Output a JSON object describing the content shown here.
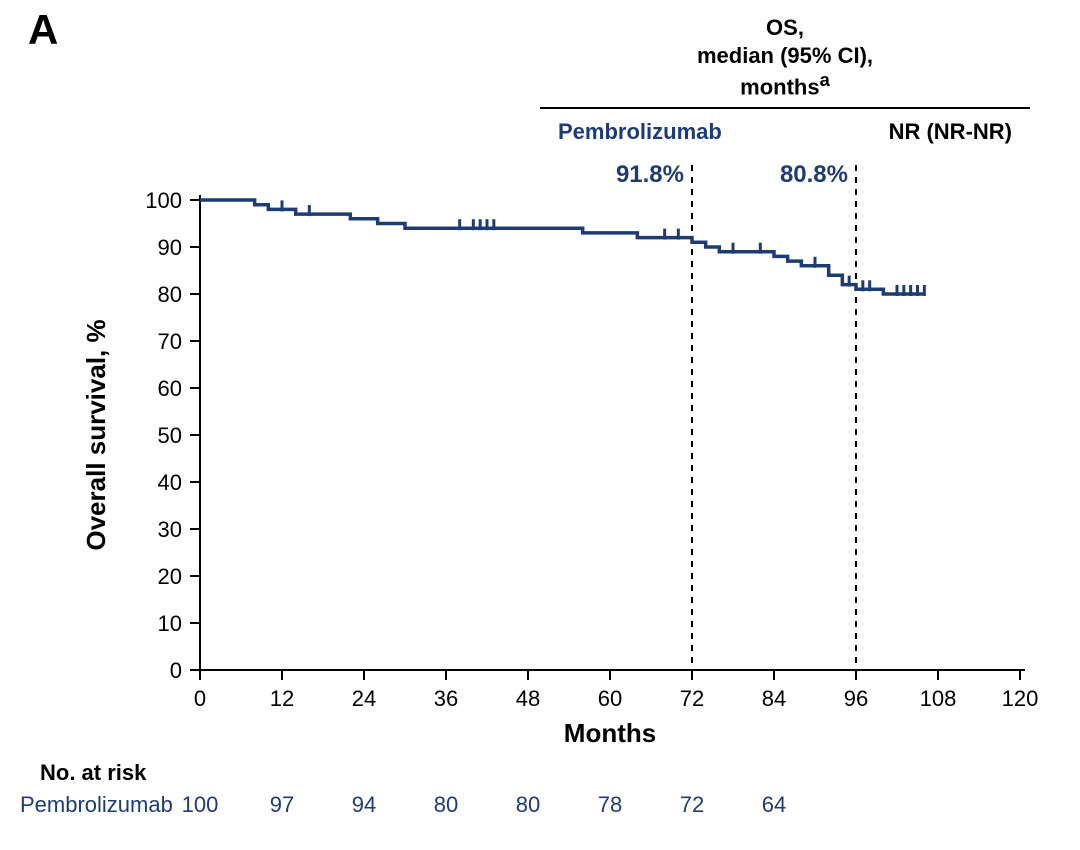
{
  "panel_label": "A",
  "panel_label_fontsize": 42,
  "header": {
    "title_line1": "OS,",
    "title_line2": "median (95% CI),",
    "title_line3": "months",
    "title_sup": "a",
    "row": {
      "name": "Pembrolizumab",
      "value": "NR (NR-NR)"
    },
    "text_color": "#000000",
    "fontsize": 22
  },
  "chart": {
    "type": "kaplan-meier",
    "line_color": "#1f3b73",
    "background_color": "#ffffff",
    "x": {
      "label": "Months",
      "min": 0,
      "max": 120,
      "ticks": [
        0,
        12,
        24,
        36,
        48,
        60,
        72,
        84,
        96,
        108,
        120
      ],
      "tick_len": 10
    },
    "y": {
      "label": "Overall survival, %",
      "min": 0,
      "max": 100,
      "ticks": [
        0,
        10,
        20,
        30,
        40,
        50,
        60,
        70,
        80,
        90,
        100
      ],
      "tick_len": 10
    },
    "curve": [
      [
        0,
        100
      ],
      [
        8,
        100
      ],
      [
        8,
        99
      ],
      [
        10,
        99
      ],
      [
        10,
        98
      ],
      [
        14,
        98
      ],
      [
        14,
        97
      ],
      [
        22,
        97
      ],
      [
        22,
        96
      ],
      [
        26,
        96
      ],
      [
        26,
        95
      ],
      [
        30,
        95
      ],
      [
        30,
        94
      ],
      [
        56,
        94
      ],
      [
        56,
        93
      ],
      [
        64,
        93
      ],
      [
        64,
        92
      ],
      [
        72,
        92
      ],
      [
        72,
        91
      ],
      [
        74,
        91
      ],
      [
        74,
        90
      ],
      [
        76,
        90
      ],
      [
        76,
        89
      ],
      [
        84,
        89
      ],
      [
        84,
        88
      ],
      [
        86,
        88
      ],
      [
        86,
        87
      ],
      [
        88,
        87
      ],
      [
        88,
        86
      ],
      [
        92,
        86
      ],
      [
        92,
        84
      ],
      [
        94,
        84
      ],
      [
        94,
        82
      ],
      [
        96,
        82
      ],
      [
        96,
        81
      ],
      [
        100,
        81
      ],
      [
        100,
        80
      ],
      [
        106,
        80
      ]
    ],
    "censor_marks": [
      [
        12,
        98
      ],
      [
        16,
        97
      ],
      [
        38,
        94
      ],
      [
        40,
        94
      ],
      [
        41,
        94
      ],
      [
        42,
        94
      ],
      [
        43,
        94
      ],
      [
        68,
        92
      ],
      [
        70,
        92
      ],
      [
        78,
        89
      ],
      [
        82,
        89
      ],
      [
        90,
        86
      ],
      [
        95,
        82
      ],
      [
        97,
        81
      ],
      [
        98,
        81
      ],
      [
        102,
        80
      ],
      [
        103,
        80
      ],
      [
        104,
        80
      ],
      [
        105,
        80
      ],
      [
        106,
        80
      ]
    ],
    "reference_lines": [
      {
        "x": 72,
        "label": "91.8%"
      },
      {
        "x": 96,
        "label": "80.8%"
      }
    ]
  },
  "risk_table": {
    "title": "No. at risk",
    "series_name": "Pembrolizumab",
    "series_color": "#1f3b73",
    "x_positions": [
      0,
      12,
      24,
      36,
      48,
      60,
      72,
      84
    ],
    "values": [
      "100",
      "97",
      "94",
      "80",
      "80",
      "78",
      "72",
      "64"
    ]
  }
}
